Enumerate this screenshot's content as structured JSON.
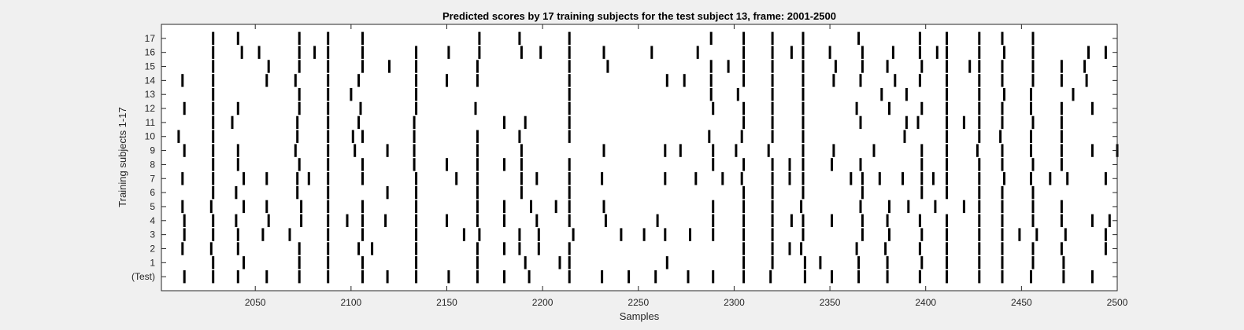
{
  "chart_data": {
    "type": "raster",
    "title": "Predicted scores by 17 training subjects for the test subject 13, frame: 2001-2500",
    "xlabel": "Samples",
    "ylabel": "Training subjects 1-17",
    "xlim": [
      2001,
      2500
    ],
    "xticks": [
      2050,
      2100,
      2150,
      2200,
      2250,
      2300,
      2350,
      2400,
      2450,
      2500
    ],
    "ytick_labels": [
      "(Test)",
      "1",
      "2",
      "3",
      "4",
      "5",
      "6",
      "7",
      "8",
      "9",
      "10",
      "11",
      "12",
      "13",
      "14",
      "15",
      "16",
      "17"
    ],
    "grid": false,
    "background": "#ffffff",
    "figure_background": "#f0f0f0",
    "event_color": "#000000",
    "rows": [
      {
        "label": "(Test)",
        "events": [
          2013,
          2028,
          2041,
          2056,
          2073,
          2088,
          2106,
          2119,
          2134,
          2151,
          2166,
          2180,
          2193,
          2214,
          2231,
          2245,
          2259,
          2276,
          2289,
          2305,
          2319,
          2337,
          2351,
          2365,
          2380,
          2397,
          2411,
          2428,
          2440,
          2455,
          2472,
          2487
        ]
      },
      {
        "label": "1",
        "events": [
          2028,
          2044,
          2073,
          2088,
          2106,
          2134,
          2166,
          2191,
          2209,
          2214,
          2265,
          2305,
          2320,
          2337,
          2345,
          2365,
          2380,
          2398,
          2411,
          2428,
          2440,
          2456,
          2472
        ]
      },
      {
        "label": "2",
        "events": [
          2012,
          2027,
          2041,
          2073,
          2088,
          2104,
          2111,
          2134,
          2166,
          2180,
          2188,
          2198,
          2214,
          2305,
          2320,
          2329,
          2335,
          2364,
          2379,
          2397,
          2411,
          2428,
          2440,
          2456,
          2471,
          2494
        ]
      },
      {
        "label": "3",
        "events": [
          2013,
          2028,
          2041,
          2054,
          2068,
          2088,
          2106,
          2134,
          2159,
          2167,
          2188,
          2198,
          2216,
          2241,
          2253,
          2264,
          2277,
          2289,
          2305,
          2320,
          2336,
          2367,
          2381,
          2398,
          2411,
          2428,
          2440,
          2449,
          2458,
          2473,
          2494
        ]
      },
      {
        "label": "4",
        "events": [
          2013,
          2028,
          2040,
          2057,
          2074,
          2088,
          2098,
          2106,
          2118,
          2134,
          2150,
          2166,
          2180,
          2197,
          2214,
          2233,
          2260,
          2289,
          2305,
          2320,
          2330,
          2336,
          2351,
          2367,
          2380,
          2397,
          2411,
          2428,
          2440,
          2456,
          2471,
          2487,
          2496
        ]
      },
      {
        "label": "5",
        "events": [
          2012,
          2027,
          2044,
          2056,
          2074,
          2088,
          2106,
          2134,
          2166,
          2180,
          2194,
          2207,
          2214,
          2232,
          2289,
          2305,
          2320,
          2335,
          2366,
          2381,
          2391,
          2405,
          2420,
          2428,
          2440,
          2456,
          2471
        ]
      },
      {
        "label": "6",
        "events": [
          2028,
          2040,
          2072,
          2088,
          2119,
          2134,
          2166,
          2189,
          2214,
          2305,
          2320,
          2336,
          2367,
          2398,
          2411,
          2428,
          2440,
          2456
        ]
      },
      {
        "label": "7",
        "events": [
          2012,
          2028,
          2044,
          2056,
          2072,
          2078,
          2088,
          2106,
          2134,
          2155,
          2166,
          2189,
          2197,
          2214,
          2231,
          2264,
          2280,
          2294,
          2304,
          2320,
          2329,
          2336,
          2361,
          2367,
          2376,
          2388,
          2398,
          2404,
          2411,
          2428,
          2441,
          2455,
          2465,
          2474,
          2494
        ]
      },
      {
        "label": "8",
        "events": [
          2028,
          2041,
          2073,
          2088,
          2106,
          2133,
          2150,
          2166,
          2180,
          2189,
          2214,
          2289,
          2305,
          2320,
          2329,
          2336,
          2351,
          2366,
          2398,
          2411,
          2428,
          2440,
          2456,
          2471
        ]
      },
      {
        "label": "9",
        "events": [
          2013,
          2028,
          2041,
          2071,
          2088,
          2102,
          2119,
          2133,
          2166,
          2189,
          2232,
          2264,
          2272,
          2289,
          2301,
          2318,
          2336,
          2352,
          2373,
          2398,
          2411,
          2427,
          2440,
          2455,
          2471,
          2487,
          2500
        ]
      },
      {
        "label": "10",
        "events": [
          2010,
          2028,
          2072,
          2088,
          2101,
          2106,
          2133,
          2166,
          2188,
          2214,
          2287,
          2304,
          2320,
          2336,
          2389,
          2411,
          2428,
          2439,
          2455,
          2471
        ]
      },
      {
        "label": "11",
        "events": [
          2028,
          2038,
          2072,
          2088,
          2104,
          2133,
          2180,
          2191,
          2214,
          2305,
          2320,
          2336,
          2366,
          2390,
          2396,
          2411,
          2420,
          2428,
          2440,
          2456,
          2471
        ]
      },
      {
        "label": "12",
        "events": [
          2013,
          2028,
          2041,
          2073,
          2088,
          2105,
          2134,
          2165,
          2214,
          2289,
          2305,
          2320,
          2336,
          2364,
          2381,
          2398,
          2411,
          2428,
          2440,
          2455,
          2471,
          2487
        ]
      },
      {
        "label": "13",
        "events": [
          2028,
          2073,
          2088,
          2100,
          2134,
          2214,
          2288,
          2302,
          2320,
          2336,
          2377,
          2390,
          2411,
          2428,
          2441,
          2455,
          2477
        ]
      },
      {
        "label": "14",
        "events": [
          2012,
          2028,
          2056,
          2071,
          2088,
          2104,
          2134,
          2150,
          2166,
          2214,
          2265,
          2274,
          2288,
          2305,
          2320,
          2336,
          2352,
          2366,
          2384,
          2397,
          2411,
          2428,
          2440,
          2456,
          2471,
          2484
        ]
      },
      {
        "label": "15",
        "events": [
          2028,
          2057,
          2073,
          2088,
          2106,
          2120,
          2134,
          2166,
          2214,
          2234,
          2288,
          2297,
          2305,
          2320,
          2336,
          2353,
          2367,
          2380,
          2398,
          2411,
          2423,
          2428,
          2440,
          2456,
          2471,
          2483
        ]
      },
      {
        "label": "16",
        "events": [
          2028,
          2043,
          2052,
          2073,
          2081,
          2088,
          2106,
          2134,
          2151,
          2167,
          2189,
          2199,
          2214,
          2232,
          2257,
          2281,
          2305,
          2320,
          2330,
          2336,
          2350,
          2367,
          2383,
          2397,
          2406,
          2411,
          2428,
          2441,
          2456,
          2485,
          2494
        ]
      },
      {
        "label": "17",
        "events": [
          2028,
          2041,
          2073,
          2088,
          2106,
          2167,
          2188,
          2214,
          2288,
          2305,
          2320,
          2336,
          2365,
          2397,
          2411,
          2428,
          2440,
          2456
        ]
      }
    ]
  }
}
